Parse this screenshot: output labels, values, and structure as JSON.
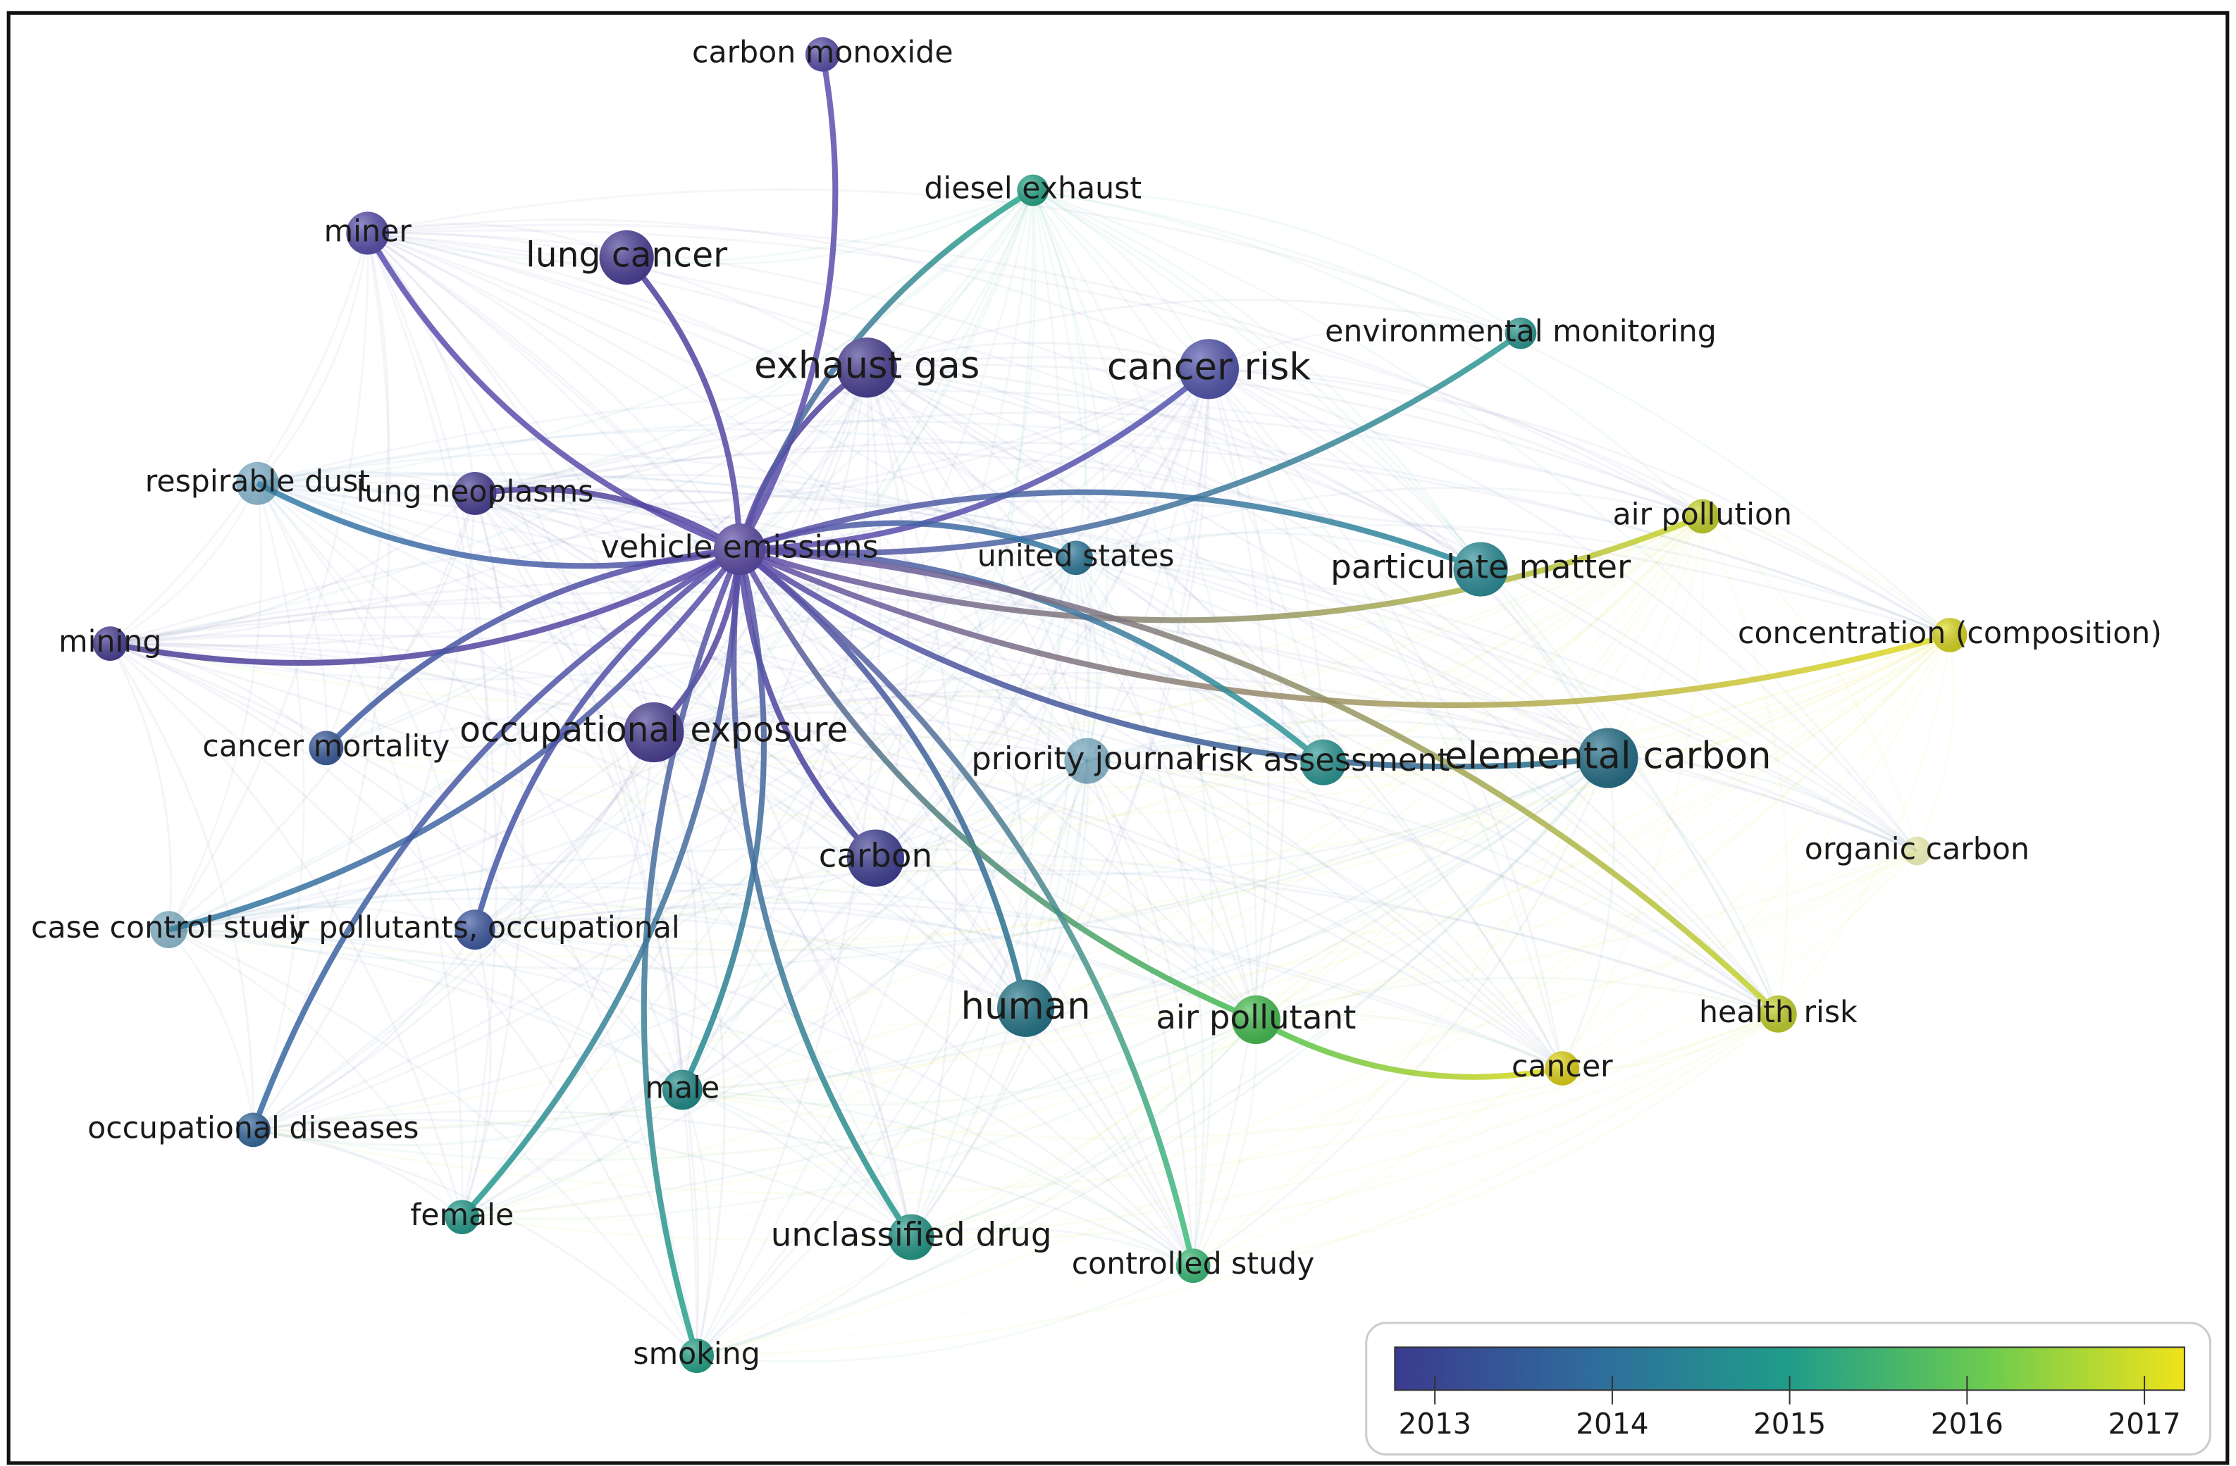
{
  "nodes": [
    {
      "label": "carbon monoxide",
      "color": "#5a4fae"
    },
    {
      "label": "diesel exhaust",
      "color": "#26a98a"
    },
    {
      "label": "miner",
      "color": "#5a4fae"
    },
    {
      "label": "lung cancer",
      "color": "#4b3f9a"
    },
    {
      "label": "exhaust gas",
      "color": "#4a3f96"
    },
    {
      "label": "cancer risk",
      "color": "#5356b0"
    },
    {
      "label": "environmental monitoring",
      "color": "#2a9a92"
    },
    {
      "label": "respirable dust",
      "color": "#2f7fa8"
    },
    {
      "label": "lung neoplasms",
      "color": "#4a3f96"
    },
    {
      "label": "vehicle emissions",
      "color": "#5c4aa8"
    },
    {
      "label": "united states",
      "color": "#2e7b9e"
    },
    {
      "label": "air pollution",
      "color": "#c8d628"
    },
    {
      "label": "particulate matter",
      "color": "#2a8f9a"
    },
    {
      "label": "mining",
      "color": "#4a3f96"
    },
    {
      "label": "concentration (composition)",
      "color": "#e0dd20"
    },
    {
      "label": "cancer mortality",
      "color": "#3a5c9e"
    },
    {
      "label": "occupational exposure",
      "color": "#4a3f96"
    },
    {
      "label": "priority journal",
      "color": "#2e7b9e"
    },
    {
      "label": "risk assessment",
      "color": "#2a9a96"
    },
    {
      "label": "elemental carbon",
      "color": "#236f8a"
    },
    {
      "label": "organic carbon",
      "color": "#dfe680"
    },
    {
      "label": "carbon",
      "color": "#3e3f96"
    },
    {
      "label": "case control study",
      "color": "#2e7b9e"
    },
    {
      "label": "air pollutants, occupational",
      "color": "#3f5aa5"
    },
    {
      "label": "human",
      "color": "#23778a"
    },
    {
      "label": "air pollutant",
      "color": "#45c050"
    },
    {
      "label": "health risk",
      "color": "#c6d52a"
    },
    {
      "label": "cancer",
      "color": "#e6d816"
    },
    {
      "label": "male",
      "color": "#1f8f8c"
    },
    {
      "label": "occupational diseases",
      "color": "#356aa0"
    },
    {
      "label": "female",
      "color": "#239e8e"
    },
    {
      "label": "unclassified drug",
      "color": "#229a8a"
    },
    {
      "label": "controlled study",
      "color": "#3cc07a"
    },
    {
      "label": "smoking",
      "color": "#24a58a"
    }
  ],
  "legend": {
    "ticks": [
      "2013",
      "2014",
      "2015",
      "2016",
      "2017"
    ]
  }
}
